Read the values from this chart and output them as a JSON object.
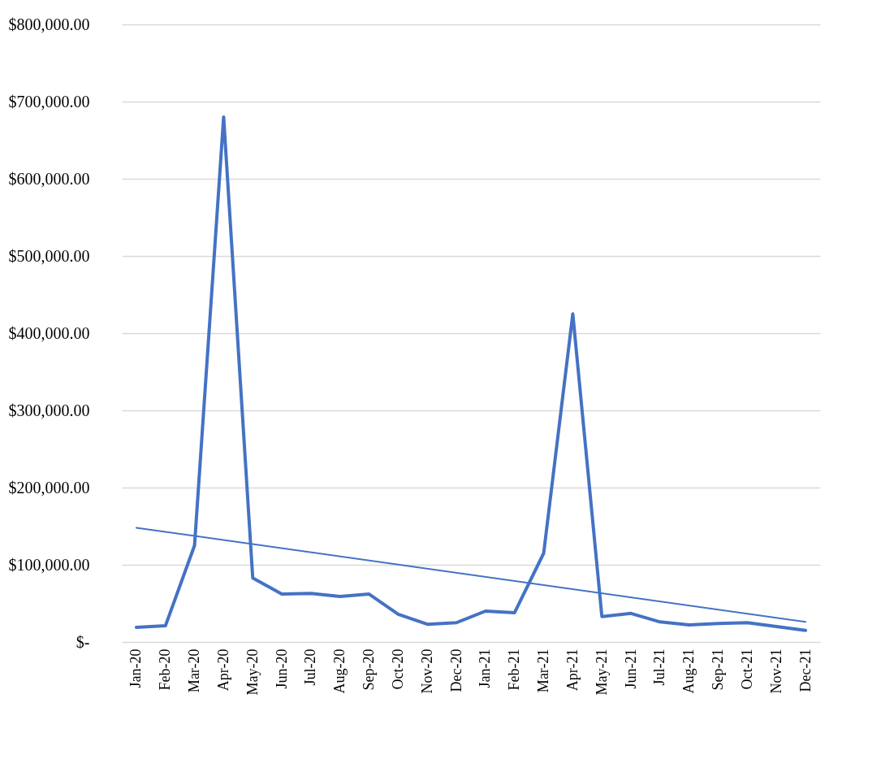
{
  "chart_data": {
    "type": "line",
    "categories": [
      "Jan-20",
      "Feb-20",
      "Mar-20",
      "Apr-20",
      "May-20",
      "Jun-20",
      "Jul-20",
      "Aug-20",
      "Sep-20",
      "Oct-20",
      "Nov-20",
      "Dec-20",
      "Jan-21",
      "Feb-21",
      "Mar-21",
      "Apr-21",
      "May-21",
      "Jun-21",
      "Jul-21",
      "Aug-21",
      "Sep-21",
      "Oct-21",
      "Nov-21",
      "Dec-21"
    ],
    "series": [
      {
        "color": "#4472c4",
        "values": [
          19000,
          21000,
          125000,
          680000,
          83000,
          62000,
          63000,
          59000,
          62000,
          36000,
          23000,
          25000,
          40000,
          38000,
          115000,
          425000,
          33000,
          37000,
          26000,
          22000,
          24000,
          25000,
          20000,
          15000
        ]
      },
      {
        "type": "line",
        "color": "#4472c4",
        "values": [
          148000,
          null,
          null,
          null,
          null,
          null,
          null,
          null,
          null,
          null,
          null,
          null,
          null,
          null,
          null,
          null,
          null,
          null,
          null,
          null,
          null,
          null,
          null,
          26000
        ]
      }
    ],
    "ylim": [
      0,
      800000
    ],
    "yticks": [
      {
        "value": 0,
        "label": "$-"
      },
      {
        "value": 100000,
        "label": "$100,000.00"
      },
      {
        "value": 200000,
        "label": "$200,000.00"
      },
      {
        "value": 300000,
        "label": "$300,000.00"
      },
      {
        "value": 400000,
        "label": "$400,000.00"
      },
      {
        "value": 500000,
        "label": "$500,000.00"
      },
      {
        "value": 600000,
        "label": "$600,000.00"
      },
      {
        "value": 700000,
        "label": "$700,000.00"
      },
      {
        "value": 800000,
        "label": "$800,000.00"
      }
    ],
    "grid": "y",
    "marker": "none",
    "line_style": "solid"
  }
}
